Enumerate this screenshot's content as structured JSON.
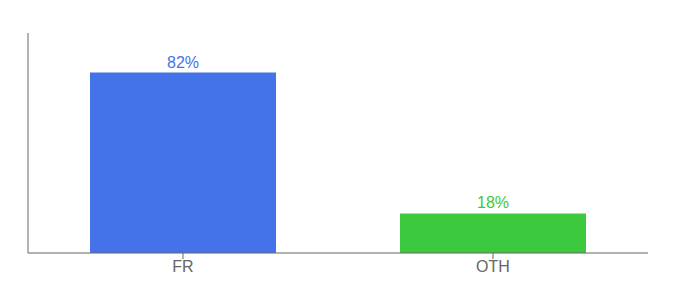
{
  "chart_data": {
    "type": "bar",
    "categories": [
      "FR",
      "OTH"
    ],
    "values": [
      82,
      18
    ],
    "value_labels": [
      "82%",
      "18%"
    ],
    "data_labels": true,
    "colors": [
      "#4472e8",
      "#3dc93d"
    ],
    "ylim": [
      0,
      100
    ],
    "tick_labels": "x",
    "grid": false
  }
}
